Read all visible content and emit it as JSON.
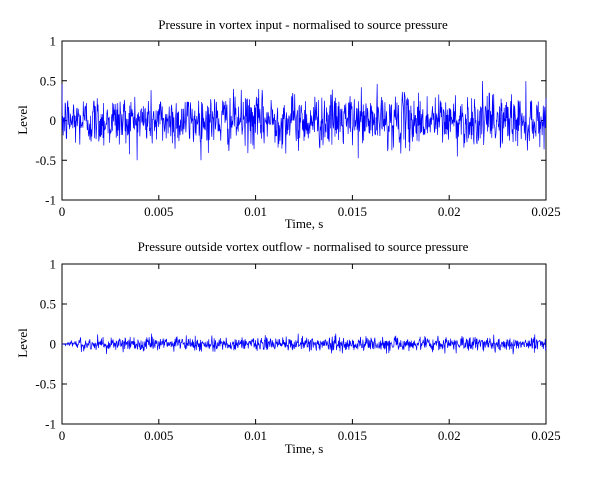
{
  "chart_data": [
    {
      "type": "line",
      "title": "Pressure in vortex input - normalised to source pressure",
      "xlabel": "Time, s",
      "ylabel": "Level",
      "xlim": [
        0,
        0.025
      ],
      "ylim": [
        -1,
        1
      ],
      "xticks": [
        "0",
        "0.005",
        "0.01",
        "0.015",
        "0.02",
        "0.025"
      ],
      "yticks": [
        "1",
        "0.5",
        "0",
        "-0.5",
        "-1"
      ],
      "grid": false,
      "line_color": "#0000ff",
      "series": [
        {
          "description": "dense noise signal",
          "approx_amplitude": 0.3,
          "approx_peak": 0.5,
          "sample_count": 1250
        }
      ]
    },
    {
      "type": "line",
      "title": "Pressure outside vortex outflow - normalised to source pressure",
      "xlabel": "Time, s",
      "ylabel": "Level",
      "xlim": [
        0,
        0.025
      ],
      "ylim": [
        -1,
        1
      ],
      "xticks": [
        "0",
        "0.005",
        "0.01",
        "0.015",
        "0.02",
        "0.025"
      ],
      "yticks": [
        "1",
        "0.5",
        "0",
        "-0.5",
        "-1"
      ],
      "grid": false,
      "line_color": "#0000ff",
      "series": [
        {
          "description": "low-level noise signal, near zero at start",
          "approx_amplitude": 0.08,
          "approx_peak": 0.13,
          "sample_count": 1250
        }
      ]
    }
  ]
}
